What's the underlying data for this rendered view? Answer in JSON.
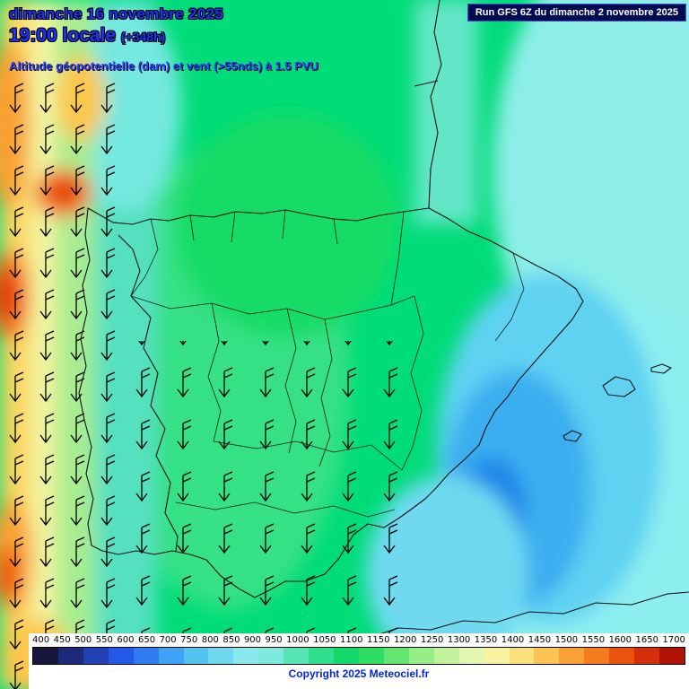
{
  "header": {
    "date_line": "dimanche 16 novembre 2025",
    "time_value": "19:00 locale",
    "offset": "(+348h)",
    "subtitle": "Altitude géopotentielle (dam) et vent (>55nds) à 1.5 PVU"
  },
  "run_box": {
    "label": "Run GFS 6Z du dimanche 2 novembre 2025"
  },
  "footer": {
    "copyright": "Copyright 2025 Meteociel.fr"
  },
  "chart_data": {
    "type": "heatmap",
    "title": "Altitude géopotentielle (dam) et vent (>55nds) à 1.5 PVU",
    "model": "GFS",
    "run": "6Z du dimanche 2 novembre 2025",
    "valid": "dimanche 16 novembre 2025 19:00 locale (+348h)",
    "unit": "dam",
    "region": "Péninsule Ibérique / Espagne",
    "colorbar": {
      "ticks": [
        "400",
        "450",
        "500",
        "550",
        "600",
        "650",
        "700",
        "750",
        "800",
        "850",
        "900",
        "950",
        "1000",
        "1050",
        "1100",
        "1150",
        "1200",
        "1250",
        "1300",
        "1350",
        "1400",
        "1450",
        "1500",
        "1550",
        "1600",
        "1650",
        "1700"
      ],
      "colors": [
        "#16163c",
        "#1c2a7a",
        "#2041b4",
        "#2458e6",
        "#2f7cf0",
        "#3fa2f5",
        "#55c3f2",
        "#6fd9f0",
        "#8ae9ef",
        "#7ceadc",
        "#57e5b4",
        "#2fdf8c",
        "#12d96a",
        "#2ede62",
        "#63e670",
        "#97ed86",
        "#c2f39c",
        "#e4f7b0",
        "#f7f3a0",
        "#fbdf7a",
        "#fcc455",
        "#f9a233",
        "#f47c1c",
        "#e9540d",
        "#d42f08",
        "#b01205"
      ]
    },
    "field_estimates_dam": {
      "iberia_interior": [
        1050,
        1150
      ],
      "mediterranean_low": [
        800,
        950
      ],
      "atlantic_west_ridge": [
        1350,
        1600
      ]
    },
    "wind_symbols": "wind barbs plotted where wind > 55 kt, northerly flow over the Atlantic and central Iberia"
  }
}
